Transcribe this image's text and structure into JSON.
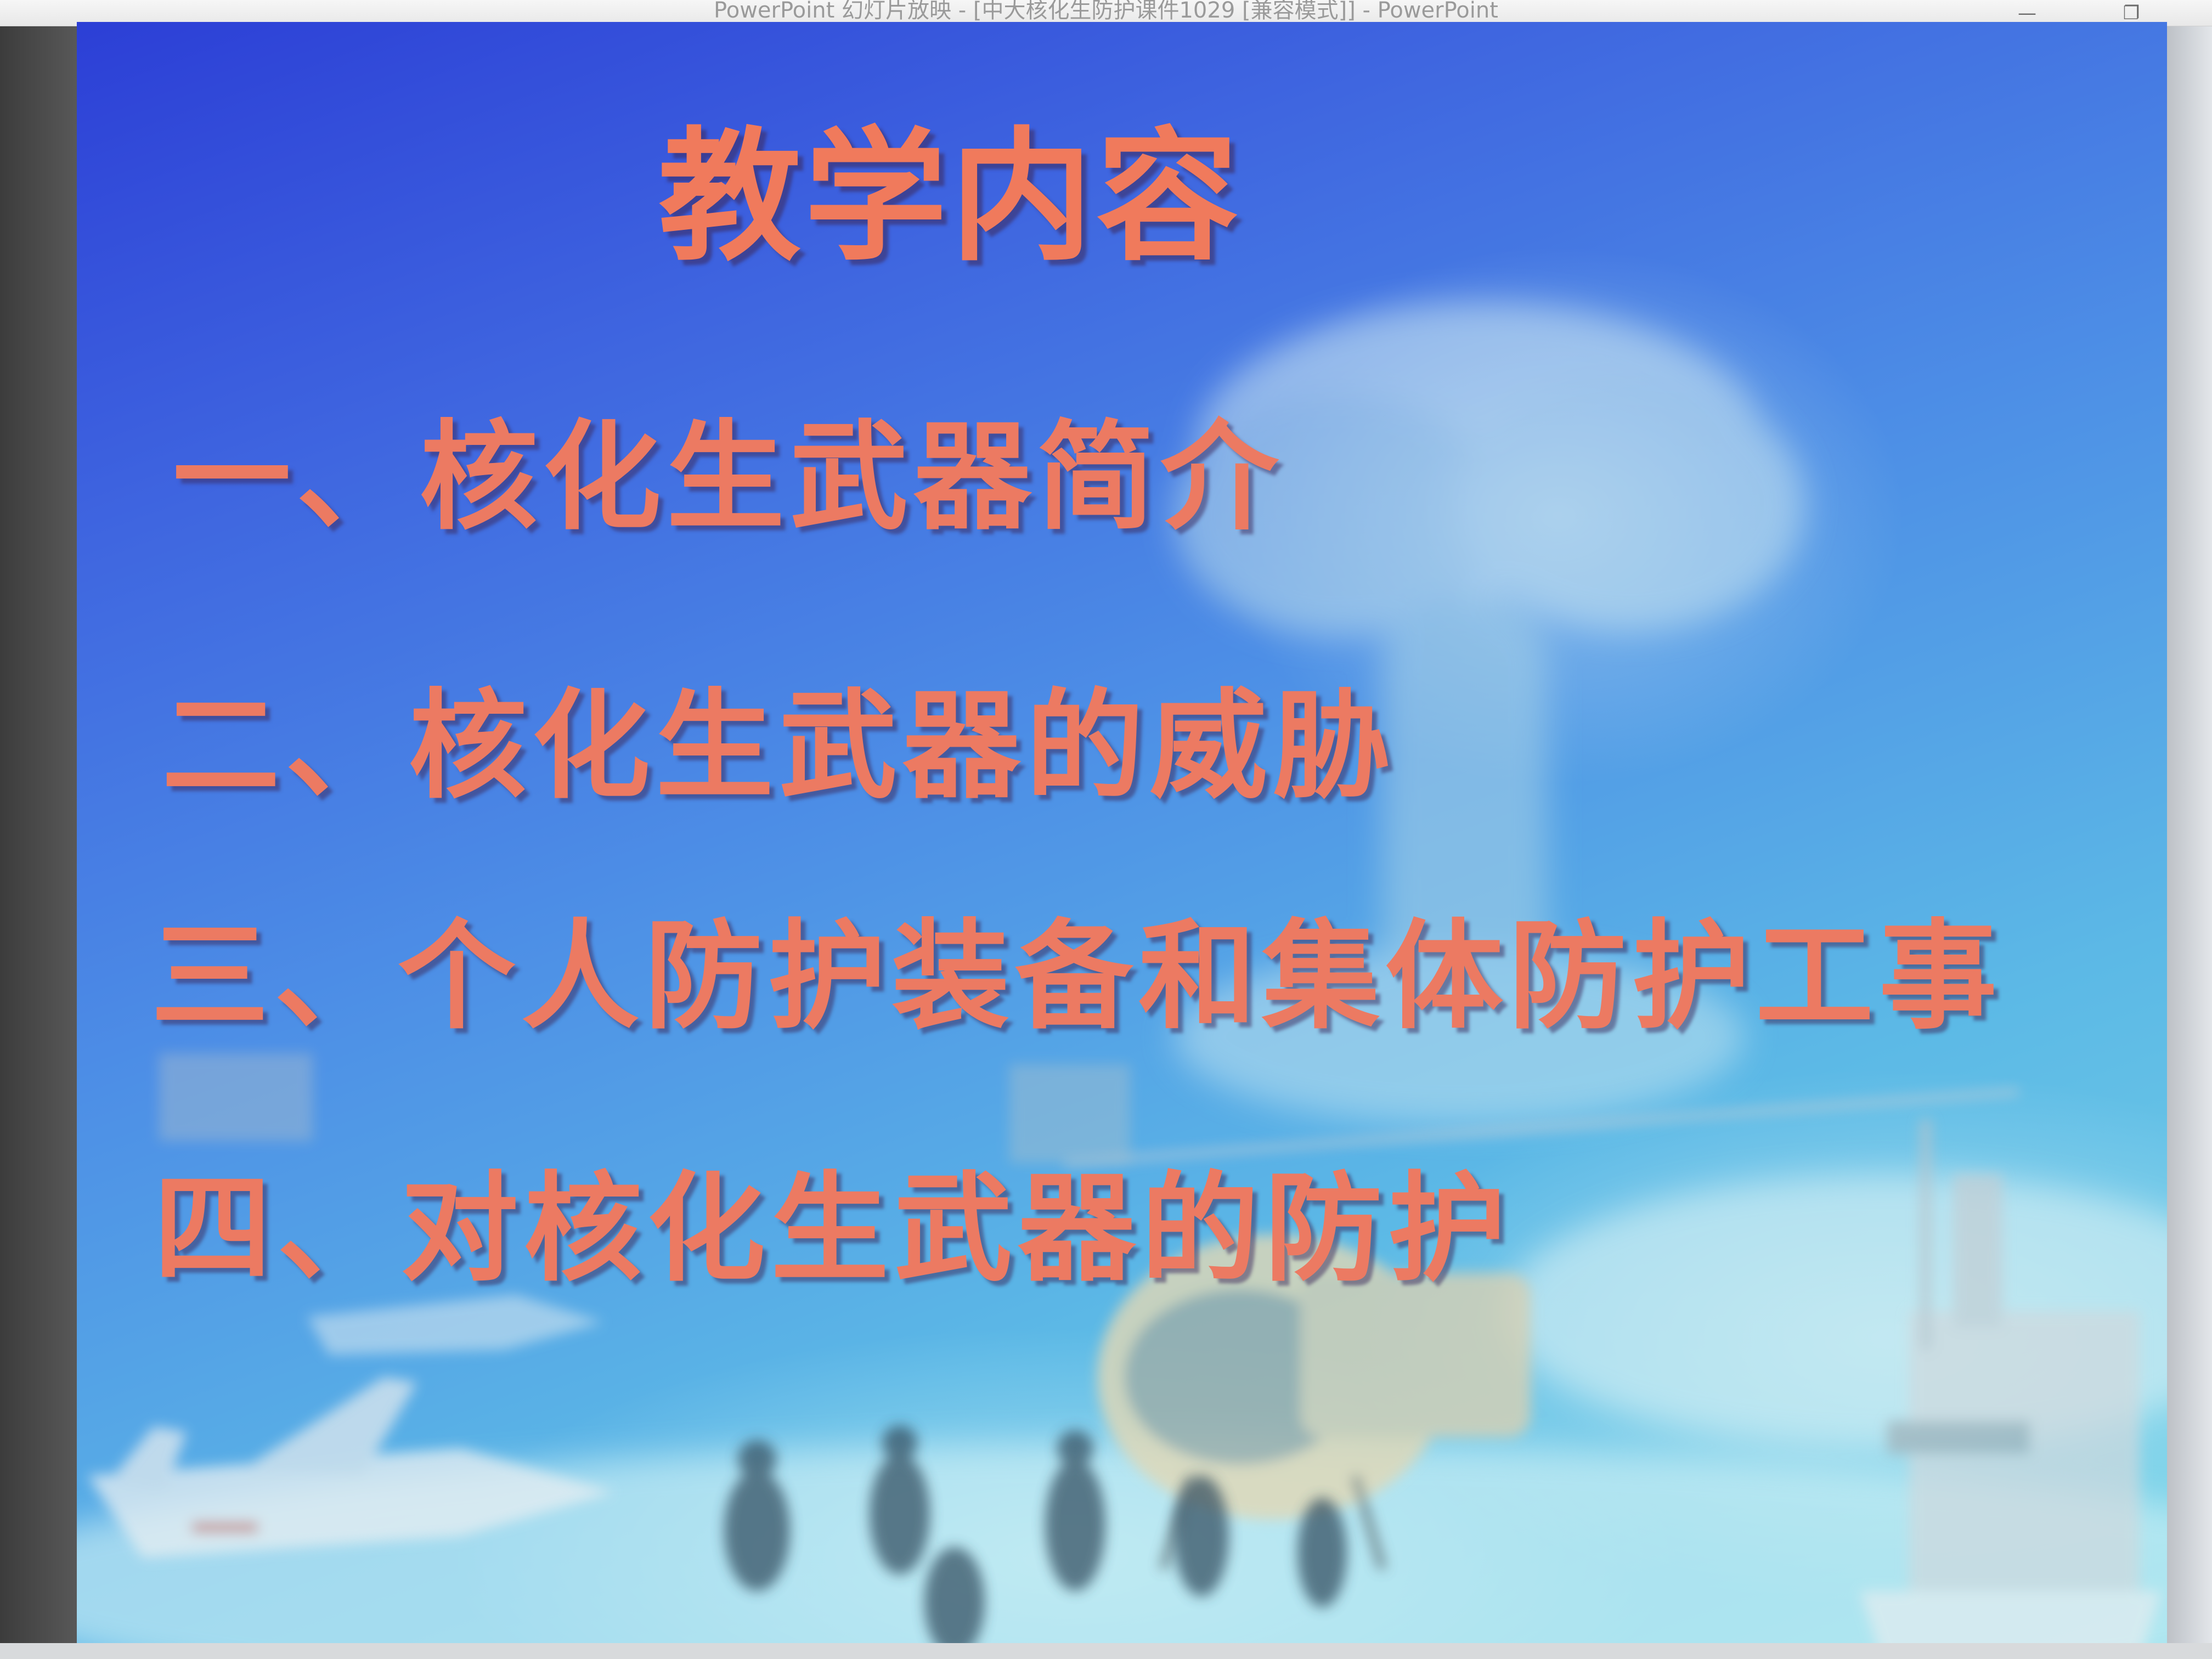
{
  "window": {
    "title": "PowerPoint 幻灯片放映 - [中大核化生防护课件1029 [兼容模式]] - PowerPoint",
    "minimize_icon": "minimize-icon",
    "restore_icon": "restore-icon"
  },
  "slide": {
    "title": "教学内容",
    "items": [
      "一、核化生武器简介",
      "二、核化生武器的威胁",
      "三、个人防护装备和集体防护工事",
      "四、对核化生武器的防护"
    ]
  },
  "colors": {
    "text": "#ec7a62",
    "background_top": "#2c3fd6",
    "background_bottom": "#7ad6e8"
  }
}
